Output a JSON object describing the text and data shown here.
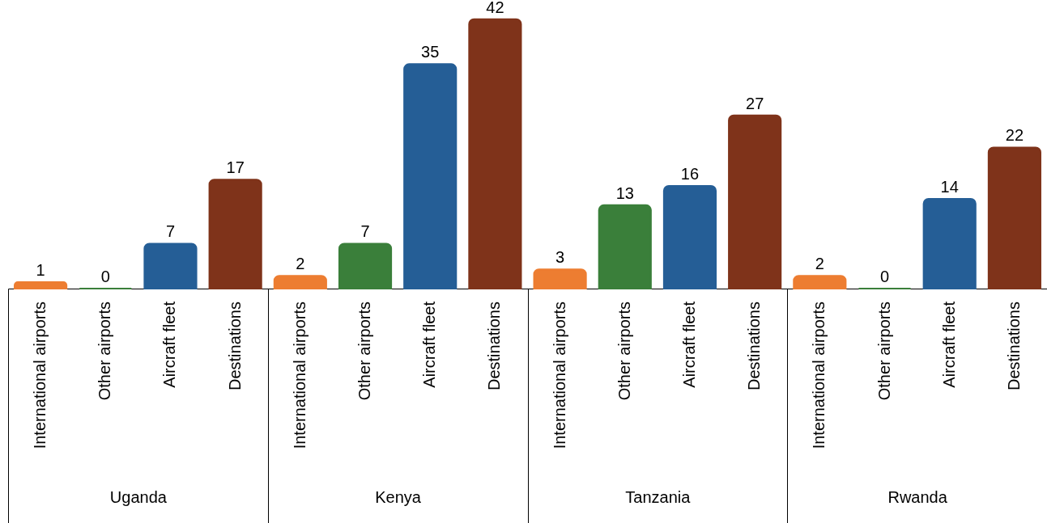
{
  "chart_data": {
    "type": "bar",
    "categories": [
      "Uganda",
      "Kenya",
      "Tanzania",
      "Rwanda"
    ],
    "series": [
      {
        "name": "International airports",
        "color": "#ed7d31",
        "values": [
          1,
          2,
          3,
          2
        ]
      },
      {
        "name": "Other airports",
        "color": "#3a7f3a",
        "values": [
          0,
          7,
          13,
          0
        ]
      },
      {
        "name": "Aircraft fleet",
        "color": "#255e96",
        "values": [
          7,
          35,
          16,
          14
        ]
      },
      {
        "name": "Destinations",
        "color": "#7f331a",
        "values": [
          17,
          42,
          27,
          22
        ]
      }
    ],
    "data_labels": true
  }
}
